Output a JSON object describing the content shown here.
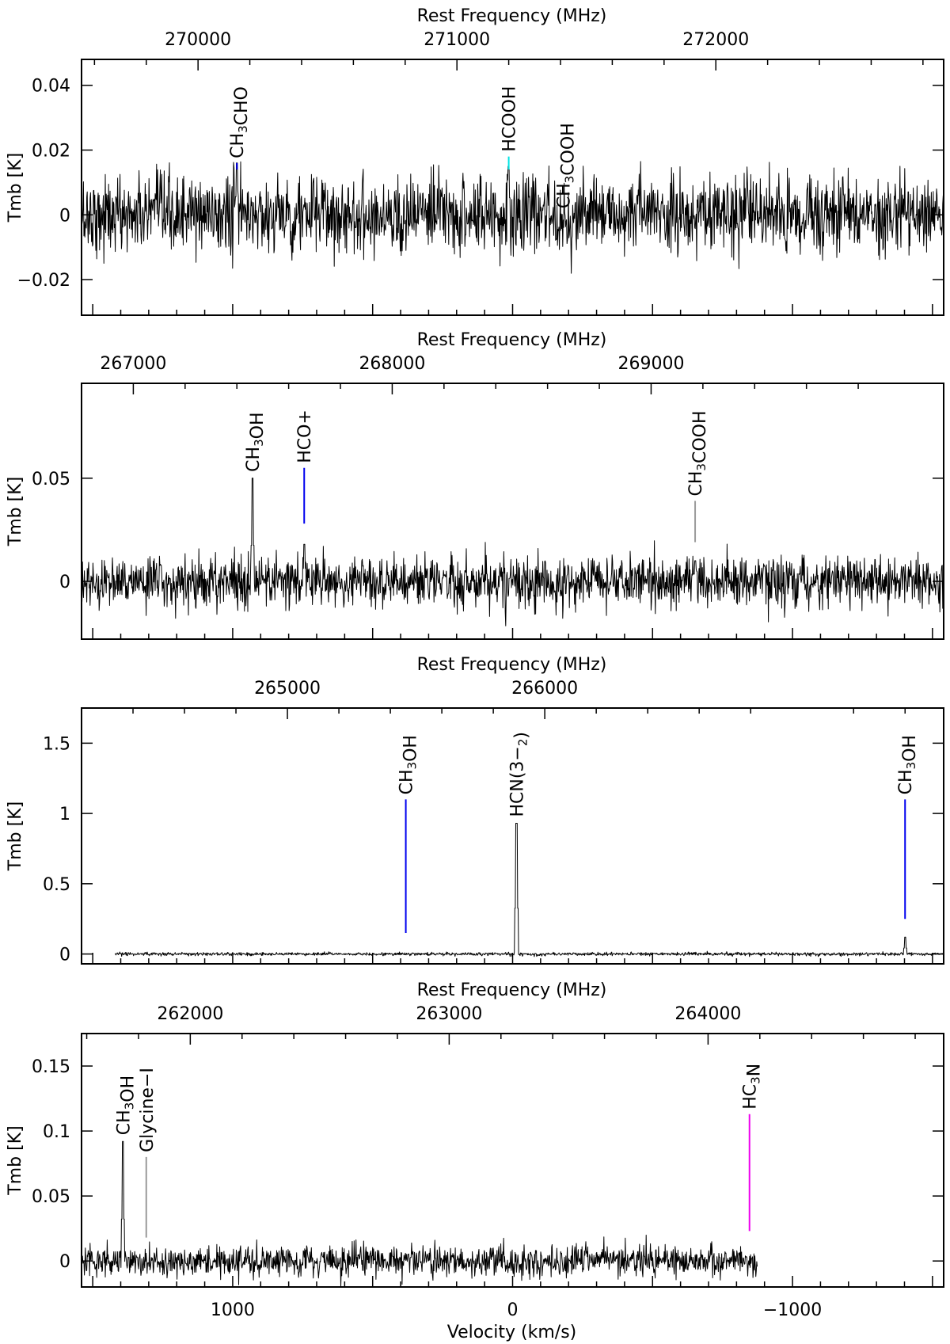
{
  "colors": {
    "blue": "#0000ee",
    "cyan": "#00e5e5",
    "grey": "#9a9a9a",
    "magenta": "#ee00ee",
    "black": "#000000"
  },
  "chart_data": [
    {
      "type": "line",
      "top_axis_label": "Rest Frequency (MHz)",
      "ylabel": "Tmb [K]",
      "freq_range": [
        269550,
        272880
      ],
      "ylim": [
        -0.031,
        0.048
      ],
      "freq_ticks": [
        "270000",
        "271000",
        "272000"
      ],
      "y_ticks": [
        "0.04",
        "0.02",
        "0",
        "−0.02"
      ],
      "y_tick_values": [
        0.04,
        0.02,
        0,
        -0.02
      ],
      "noise_rms": 0.006,
      "spectrum_start_freq": 269550,
      "spectrum_end_freq": 272880,
      "lines": [
        {
          "label": "CH3CHO",
          "freq": 270150,
          "peak": 0.016,
          "color": "blue",
          "marker": [
            0.014,
            0.016
          ]
        },
        {
          "label": "HCOOH",
          "freq": 271200,
          "peak": 0.015,
          "color": "cyan",
          "marker": [
            0.014,
            0.018
          ]
        },
        {
          "label": "CH3COOH",
          "freq": 271410,
          "peak": 0.0,
          "color": "grey",
          "marker": null
        }
      ]
    },
    {
      "type": "line",
      "top_axis_label": "Rest Frequency (MHz)",
      "ylabel": "Tmb [K]",
      "freq_range": [
        266800,
        270130
      ],
      "ylim": [
        -0.028,
        0.096
      ],
      "freq_ticks": [
        "267000",
        "268000",
        "269000"
      ],
      "y_ticks": [
        "0.05",
        "0"
      ],
      "y_tick_values": [
        0.05,
        0
      ],
      "noise_rms": 0.006,
      "spectrum_start_freq": 266800,
      "spectrum_end_freq": 270130,
      "lines": [
        {
          "label": "CH3OH",
          "freq": 267460,
          "peak": 0.05,
          "color": "blue",
          "marker": null
        },
        {
          "label": "HCO+",
          "freq": 267660,
          "peak": 0.018,
          "color": "blue",
          "marker": [
            0.028,
            0.055
          ]
        },
        {
          "label": "CH3COOH",
          "freq": 269170,
          "peak": 0.01,
          "color": "grey",
          "marker": [
            0.019,
            0.039
          ]
        }
      ]
    },
    {
      "type": "line",
      "top_axis_label": "Rest Frequency (MHz)",
      "ylabel": "Tmb [K]",
      "freq_range": [
        264200,
        267550
      ],
      "ylim": [
        -0.07,
        1.75
      ],
      "freq_ticks": [
        "265000",
        "266000"
      ],
      "y_ticks": [
        "1.5",
        "1",
        "0.5",
        "0"
      ],
      "y_tick_values": [
        1.5,
        1,
        0.5,
        0
      ],
      "noise_rms": 0.006,
      "spectrum_start_freq": 264330,
      "spectrum_end_freq": 267550,
      "lines": [
        {
          "label": "CH3OH",
          "freq": 265460,
          "peak": 0.0,
          "color": "blue",
          "marker": [
            0.15,
            1.1
          ]
        },
        {
          "label": "HCN(3−2)",
          "freq": 265890,
          "peak": 0.93,
          "color": "grey",
          "marker": null
        },
        {
          "label": "CH3OH",
          "freq": 267400,
          "peak": 0.12,
          "color": "blue",
          "marker": [
            0.25,
            1.1
          ]
        }
      ]
    },
    {
      "type": "line",
      "top_axis_label": "Rest Frequency (MHz)",
      "xlabel": "Velocity (km/s)",
      "ylabel": "Tmb [K]",
      "freq_range": [
        261580,
        264910
      ],
      "velocity_range": [
        1540,
        -1540
      ],
      "ylim": [
        -0.02,
        0.175
      ],
      "freq_ticks": [
        "262000",
        "263000",
        "264000"
      ],
      "velocity_ticks": [
        "1000",
        "0",
        "−1000"
      ],
      "velocity_tick_values": [
        1000,
        0,
        -1000
      ],
      "y_ticks": [
        "0.15",
        "0.1",
        "0.05",
        "0"
      ],
      "y_tick_values": [
        0.15,
        0.1,
        0.05,
        0
      ],
      "noise_rms": 0.006,
      "spectrum_start_freq": 261580,
      "spectrum_end_freq": 264190,
      "lines": [
        {
          "label": "CH3OH",
          "freq": 261740,
          "peak": 0.092,
          "color": "blue",
          "marker": null
        },
        {
          "label": "Glycine−I",
          "freq": 261830,
          "peak": 0.0,
          "color": "grey",
          "marker": [
            0.018,
            0.08
          ]
        },
        {
          "label": "HC3N",
          "freq": 264160,
          "peak": 0.0,
          "color": "magenta",
          "marker": [
            0.023,
            0.113
          ]
        }
      ]
    }
  ]
}
